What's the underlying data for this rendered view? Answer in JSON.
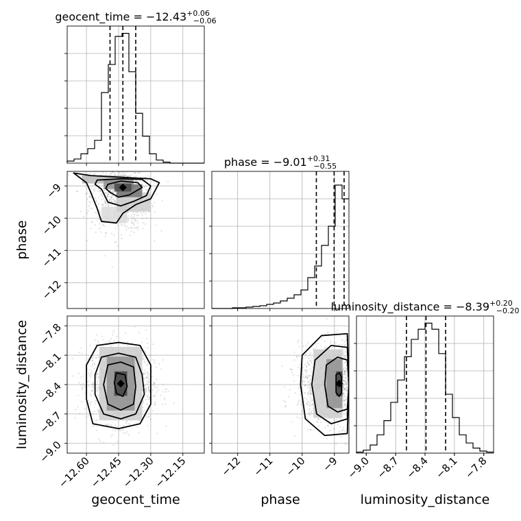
{
  "chart_data": {
    "type": "corner",
    "grid": true,
    "parameters": [
      {
        "name": "geocent_time",
        "label": "geocent_time",
        "range": [
          -12.69,
          -12.05
        ],
        "ticks": [
          -12.6,
          -12.45,
          -12.3,
          -12.15
        ],
        "tick_labels": [
          "−12.60",
          "−12.45",
          "−12.30",
          "−12.15"
        ],
        "title_prefix": "geocent_time = ",
        "title_value": "−12.43",
        "title_plus": "+0.06",
        "title_minus": "−0.06",
        "quantiles": [
          -12.49,
          -12.43,
          -12.37
        ],
        "hist_start": -12.69,
        "hist_step": 0.032,
        "hist_counts": [
          2,
          4,
          9,
          14,
          22,
          68,
          95,
          122,
          125,
          88,
          48,
          26,
          9,
          3,
          1,
          0,
          0,
          0,
          0,
          0
        ],
        "hist_ymax": 132
      },
      {
        "name": "phase",
        "label": "phase",
        "range": [
          -12.8,
          -8.55
        ],
        "ticks": [
          -12,
          -11,
          -10,
          -9
        ],
        "tick_labels": [
          "−12",
          "−11",
          "−10",
          "−9"
        ],
        "title_prefix": "phase = ",
        "title_value": "−9.01",
        "title_plus": "+0.31",
        "title_minus": "−0.55",
        "quantiles": [
          -9.56,
          -9.01,
          -8.7
        ],
        "hist_start": -12.8,
        "hist_step": 0.2125,
        "hist_counts": [
          0,
          0,
          0,
          1,
          1,
          2,
          3,
          4,
          6,
          8,
          11,
          15,
          20,
          27,
          45,
          62,
          92,
          120,
          180,
          160
        ],
        "hist_ymax": 200
      },
      {
        "name": "luminosity_distance",
        "label": "luminosity_distance",
        "range": [
          -9.1,
          -7.7
        ],
        "ticks": [
          -9.0,
          -8.7,
          -8.4,
          -8.1,
          -7.8
        ],
        "tick_labels": [
          "−9.0",
          "−8.7",
          "−8.4",
          "−8.1",
          "−7.8"
        ],
        "title_prefix": "luminosity_distance = ",
        "title_value": "−8.39",
        "title_plus": "+0.20",
        "title_minus": "−0.20",
        "quantiles": [
          -8.59,
          -8.39,
          -8.19
        ],
        "hist_start": -9.1,
        "hist_step": 0.07,
        "hist_counts": [
          1,
          3,
          8,
          18,
          32,
          50,
          72,
          95,
          112,
          122,
          128,
          122,
          98,
          58,
          35,
          18,
          10,
          5,
          2,
          1
        ],
        "hist_ymax": 135
      }
    ],
    "pairs": [
      {
        "x": 0,
        "y": 1,
        "peak": [
          -12.43,
          -9.05
        ],
        "contours": [
          [
            [
              -12.49,
              -9.2
            ],
            [
              -12.45,
              -9.35
            ],
            [
              -12.4,
              -9.28
            ],
            [
              -12.34,
              -9.05
            ],
            [
              -12.36,
              -8.9
            ],
            [
              -12.44,
              -8.85
            ],
            [
              -12.5,
              -8.95
            ],
            [
              -12.51,
              -9.08
            ]
          ],
          [
            [
              -12.53,
              -9.1
            ],
            [
              -12.5,
              -9.5
            ],
            [
              -12.44,
              -9.62
            ],
            [
              -12.38,
              -9.48
            ],
            [
              -12.32,
              -9.3
            ],
            [
              -12.3,
              -9.0
            ],
            [
              -12.34,
              -8.8
            ],
            [
              -12.44,
              -8.78
            ],
            [
              -12.55,
              -8.82
            ],
            [
              -12.56,
              -8.95
            ]
          ],
          [
            [
              -12.58,
              -9.2
            ],
            [
              -12.55,
              -9.7
            ],
            [
              -12.53,
              -10.1
            ],
            [
              -12.46,
              -10.15
            ],
            [
              -12.43,
              -9.85
            ],
            [
              -12.37,
              -9.58
            ],
            [
              -12.3,
              -9.4
            ],
            [
              -12.26,
              -8.9
            ],
            [
              -12.3,
              -8.78
            ],
            [
              -12.42,
              -8.74
            ],
            [
              -12.58,
              -8.68
            ],
            [
              -12.66,
              -8.6
            ],
            [
              -12.6,
              -8.9
            ]
          ]
        ],
        "density": [
          {
            "cx": -12.43,
            "cy": -9.05,
            "cw": 0.08,
            "ch": 0.25,
            "d": 0.9
          },
          {
            "cx": -12.4,
            "cy": -9.15,
            "cw": 0.12,
            "ch": 0.4,
            "d": 0.7
          },
          {
            "cx": -12.45,
            "cy": -8.95,
            "cw": 0.14,
            "ch": 0.3,
            "d": 0.55
          },
          {
            "cx": -12.52,
            "cy": -8.8,
            "cw": 0.2,
            "ch": 0.25,
            "d": 0.35
          },
          {
            "cx": -12.38,
            "cy": -9.5,
            "cw": 0.16,
            "ch": 0.6,
            "d": 0.25
          },
          {
            "cx": -12.47,
            "cy": -9.9,
            "cw": 0.12,
            "ch": 0.5,
            "d": 0.18
          }
        ],
        "scatter_center": [
          -12.44,
          -9.3
        ],
        "scatter_spread": [
          0.07,
          0.55
        ],
        "scatter_count": 900
      },
      {
        "x": 0,
        "y": 2,
        "peak": [
          -12.44,
          -8.39
        ],
        "contours": [
          [
            [
              -12.46,
              -8.28
            ],
            [
              -12.42,
              -8.3
            ],
            [
              -12.41,
              -8.42
            ],
            [
              -12.43,
              -8.52
            ],
            [
              -12.46,
              -8.49
            ],
            [
              -12.47,
              -8.38
            ]
          ],
          [
            [
              -12.5,
              -8.2
            ],
            [
              -12.44,
              -8.17
            ],
            [
              -12.38,
              -8.22
            ],
            [
              -12.37,
              -8.42
            ],
            [
              -12.38,
              -8.6
            ],
            [
              -12.44,
              -8.66
            ],
            [
              -12.5,
              -8.6
            ],
            [
              -12.52,
              -8.4
            ]
          ],
          [
            [
              -12.53,
              -8.12
            ],
            [
              -12.45,
              -8.08
            ],
            [
              -12.37,
              -8.12
            ],
            [
              -12.34,
              -8.3
            ],
            [
              -12.33,
              -8.5
            ],
            [
              -12.37,
              -8.7
            ],
            [
              -12.44,
              -8.75
            ],
            [
              -12.52,
              -8.7
            ],
            [
              -12.56,
              -8.5
            ],
            [
              -12.56,
              -8.3
            ]
          ],
          [
            [
              -12.55,
              -8.0
            ],
            [
              -12.45,
              -7.97
            ],
            [
              -12.35,
              -8.0
            ],
            [
              -12.3,
              -8.2
            ],
            [
              -12.3,
              -8.6
            ],
            [
              -12.35,
              -8.8
            ],
            [
              -12.45,
              -8.85
            ],
            [
              -12.57,
              -8.8
            ],
            [
              -12.6,
              -8.55
            ],
            [
              -12.6,
              -8.2
            ]
          ]
        ],
        "density": [
          {
            "cx": -12.44,
            "cy": -8.39,
            "cw": 0.06,
            "ch": 0.25,
            "d": 0.95
          },
          {
            "cx": -12.44,
            "cy": -8.39,
            "cw": 0.13,
            "ch": 0.55,
            "d": 0.55
          },
          {
            "cx": -12.44,
            "cy": -8.39,
            "cw": 0.2,
            "ch": 0.75,
            "d": 0.25
          }
        ],
        "scatter_center": [
          -12.44,
          -8.39
        ],
        "scatter_spread": [
          0.075,
          0.2
        ],
        "scatter_count": 1400
      },
      {
        "x": 1,
        "y": 2,
        "peak": [
          -8.85,
          -8.39
        ],
        "contours": [
          [
            [
              -8.95,
              -8.3
            ],
            [
              -8.85,
              -8.28
            ],
            [
              -8.78,
              -8.32
            ],
            [
              -8.78,
              -8.48
            ],
            [
              -8.85,
              -8.52
            ],
            [
              -8.95,
              -8.48
            ]
          ],
          [
            [
              -9.25,
              -8.2
            ],
            [
              -8.9,
              -8.12
            ],
            [
              -8.6,
              -8.15
            ],
            [
              -8.55,
              -8.4
            ],
            [
              -8.6,
              -8.65
            ],
            [
              -8.9,
              -8.68
            ],
            [
              -9.2,
              -8.62
            ],
            [
              -9.3,
              -8.4
            ]
          ],
          [
            [
              -9.6,
              -8.15
            ],
            [
              -9.1,
              -8.0
            ],
            [
              -8.6,
              -8.02
            ],
            [
              -8.55,
              -8.4
            ],
            [
              -8.6,
              -8.75
            ],
            [
              -9.1,
              -8.8
            ],
            [
              -9.55,
              -8.7
            ],
            [
              -9.7,
              -8.4
            ]
          ],
          [
            [
              -10.0,
              -8.1
            ],
            [
              -9.4,
              -7.9
            ],
            [
              -8.6,
              -7.88
            ],
            [
              -8.55,
              -8.4
            ],
            [
              -8.6,
              -8.9
            ],
            [
              -9.3,
              -8.92
            ],
            [
              -9.9,
              -8.75
            ],
            [
              -10.05,
              -8.4
            ]
          ]
        ],
        "density": [
          {
            "cx": -8.85,
            "cy": -8.39,
            "cw": 0.2,
            "ch": 0.25,
            "d": 0.95
          },
          {
            "cx": -9.0,
            "cy": -8.39,
            "cw": 0.5,
            "ch": 0.5,
            "d": 0.55
          },
          {
            "cx": -9.2,
            "cy": -8.39,
            "cw": 0.9,
            "ch": 0.7,
            "d": 0.25
          }
        ],
        "scatter_center": [
          -9.0,
          -8.39
        ],
        "scatter_spread": [
          0.55,
          0.2
        ],
        "scatter_count": 1400
      }
    ]
  }
}
